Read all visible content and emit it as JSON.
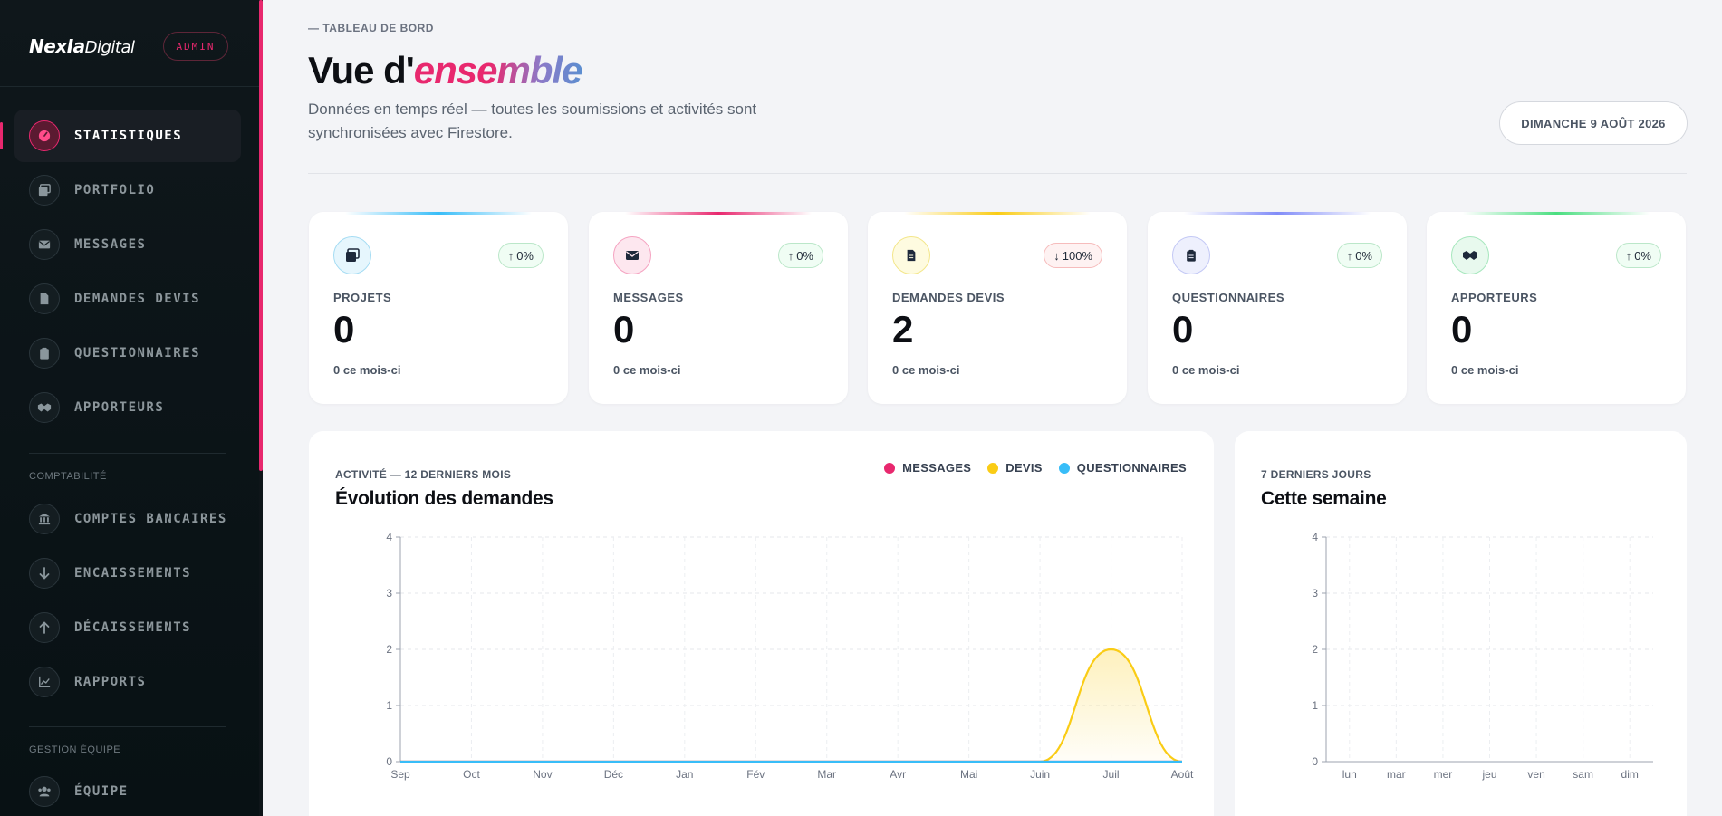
{
  "sidebar": {
    "brand": {
      "bold": "NexIa",
      "thin": "Digital"
    },
    "admin_badge": "ADMIN",
    "items": [
      {
        "label": "STATISTIQUES",
        "icon": "dashboard-gauge-icon",
        "active": true
      },
      {
        "label": "PORTFOLIO",
        "icon": "images-icon"
      },
      {
        "label": "MESSAGES",
        "icon": "envelope-icon"
      },
      {
        "label": "DEMANDES DEVIS",
        "icon": "document-icon"
      },
      {
        "label": "QUESTIONNAIRES",
        "icon": "clipboard-icon"
      },
      {
        "label": "APPORTEURS",
        "icon": "handshake-icon"
      }
    ],
    "section_accounting": "COMPTABILITÉ",
    "accounting_items": [
      {
        "label": "COMPTES BANCAIRES",
        "icon": "bank-icon"
      },
      {
        "label": "ENCAISSEMENTS",
        "icon": "arrow-down-icon"
      },
      {
        "label": "DÉCAISSEMENTS",
        "icon": "arrow-up-icon"
      },
      {
        "label": "RAPPORTS",
        "icon": "line-chart-icon"
      }
    ],
    "section_team": "GESTION ÉQUIPE",
    "team_items": [
      {
        "label": "ÉQUIPE",
        "icon": "users-icon"
      }
    ]
  },
  "header": {
    "kicker": "— TABLEAU DE BORD",
    "title_plain": "Vue d'",
    "title_accent": "ensemble",
    "subtitle": "Données en temps réel — toutes les soumissions et activités sont synchronisées avec Firestore.",
    "date": "DIMANCHE 9 AOÛT 2026"
  },
  "stats": [
    {
      "label": "PROJETS",
      "value": "0",
      "sub": "0 ce mois-ci",
      "trend": "0%",
      "trend_dir": "up",
      "icon": "images-icon",
      "color": "#38bdf8"
    },
    {
      "label": "MESSAGES",
      "value": "0",
      "sub": "0 ce mois-ci",
      "trend": "0%",
      "trend_dir": "up",
      "icon": "envelope-icon",
      "color": "#e8286e"
    },
    {
      "label": "DEMANDES DEVIS",
      "value": "2",
      "sub": "0 ce mois-ci",
      "trend": "100%",
      "trend_dir": "down",
      "icon": "document-icon",
      "color": "#facc15"
    },
    {
      "label": "QUESTIONNAIRES",
      "value": "0",
      "sub": "0 ce mois-ci",
      "trend": "0%",
      "trend_dir": "up",
      "icon": "clipboard-icon",
      "color": "#818cf8"
    },
    {
      "label": "APPORTEURS",
      "value": "0",
      "sub": "0 ce mois-ci",
      "trend": "0%",
      "trend_dir": "up",
      "icon": "handshake-icon",
      "color": "#4ade80"
    }
  ],
  "panels": {
    "activity": {
      "kicker": "ACTIVITÉ — 12 DERNIERS MOIS",
      "title": "Évolution des demandes"
    },
    "week": {
      "kicker": "7 DERNIERS JOURS",
      "title": "Cette semaine"
    }
  },
  "chart_data": [
    {
      "type": "area",
      "categories": [
        "Sep",
        "Oct",
        "Nov",
        "Déc",
        "Jan",
        "Fév",
        "Mar",
        "Avr",
        "Mai",
        "Juin",
        "Juil",
        "Août"
      ],
      "series": [
        {
          "name": "MESSAGES",
          "values": [
            0,
            0,
            0,
            0,
            0,
            0,
            0,
            0,
            0,
            0,
            0,
            0
          ],
          "color": "#e8286e"
        },
        {
          "name": "DEVIS",
          "values": [
            0,
            0,
            0,
            0,
            0,
            0,
            0,
            0,
            0,
            0,
            2,
            0
          ],
          "color": "#facc15"
        },
        {
          "name": "QUESTIONNAIRES",
          "values": [
            0,
            0,
            0,
            0,
            0,
            0,
            0,
            0,
            0,
            0,
            0,
            0
          ],
          "color": "#38bdf8"
        }
      ],
      "ylim": [
        0,
        4
      ],
      "yticks": [
        0,
        1,
        2,
        3,
        4
      ],
      "grid": true,
      "legend": "top-right"
    },
    {
      "type": "bar",
      "categories": [
        "lun",
        "mar",
        "mer",
        "jeu",
        "ven",
        "sam",
        "dim"
      ],
      "values": [
        0,
        0,
        0,
        0,
        0,
        0,
        0
      ],
      "ylim": [
        0,
        4
      ],
      "yticks": [
        0,
        1,
        2,
        3,
        4
      ],
      "grid": true
    }
  ]
}
